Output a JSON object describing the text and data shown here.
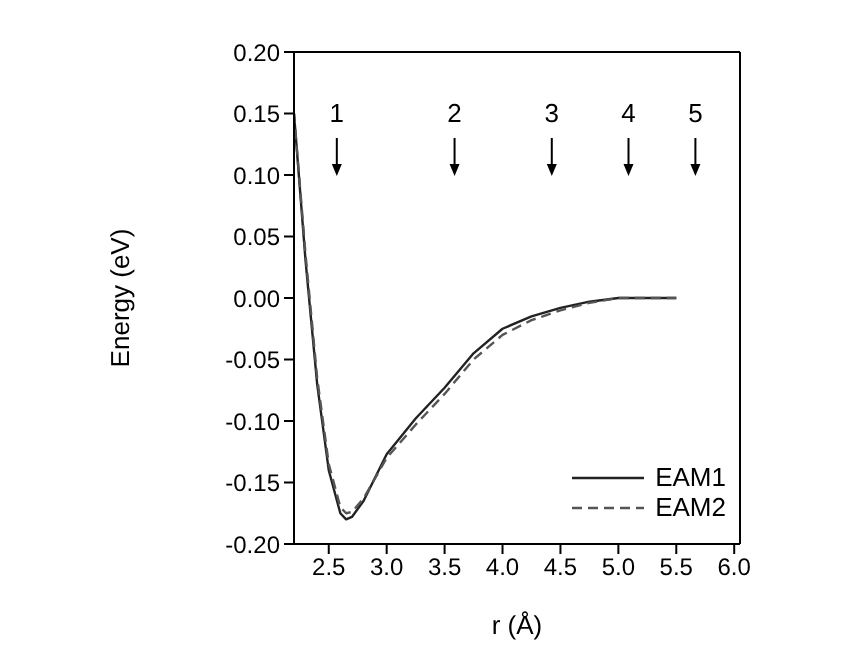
{
  "chart_data": {
    "type": "line",
    "xlabel": "r (Å)",
    "ylabel": "Energy (eV)",
    "x": [
      2.2,
      2.3,
      2.4,
      2.5,
      2.6,
      2.65,
      2.7,
      2.8,
      3.0,
      3.25,
      3.5,
      3.75,
      4.0,
      4.25,
      4.5,
      4.75,
      5.0,
      5.25,
      5.5
    ],
    "series": [
      {
        "name": "EAM1",
        "color": "#222222",
        "line_style": "solid",
        "values": [
          0.15,
          0.03,
          -0.07,
          -0.14,
          -0.175,
          -0.18,
          -0.178,
          -0.165,
          -0.127,
          -0.098,
          -0.073,
          -0.045,
          -0.025,
          -0.015,
          -0.008,
          -0.003,
          0.0,
          0.0,
          0.0
        ]
      },
      {
        "name": "EAM2",
        "color": "#555555",
        "line_style": "dashed",
        "values": [
          0.15,
          0.035,
          -0.065,
          -0.135,
          -0.17,
          -0.175,
          -0.174,
          -0.163,
          -0.13,
          -0.103,
          -0.078,
          -0.05,
          -0.03,
          -0.018,
          -0.01,
          -0.004,
          0.0,
          0.0,
          0.0
        ]
      }
    ],
    "xlim": [
      2.2,
      6.05
    ],
    "xticks": [
      2.5,
      {
        "value": 3,
        "label": "3.0"
      },
      3.5,
      {
        "value": 4,
        "label": "4.0"
      },
      4.5,
      {
        "value": 5,
        "label": "5.0"
      },
      5.5,
      {
        "value": 6,
        "label": "6.0"
      }
    ],
    "ylim": [
      -0.2,
      0.2
    ],
    "yticks": [
      {
        "value": -0.2,
        "label": "-0.20"
      },
      -0.15,
      {
        "value": -0.1,
        "label": "-0.10"
      },
      -0.05,
      {
        "value": 0,
        "label": "0.00"
      },
      0.05,
      {
        "value": 0.1,
        "label": "0.10"
      },
      0.15,
      {
        "value": 0.2,
        "label": "0.20"
      }
    ],
    "grid": false,
    "legend": "bottom right",
    "marker": "none",
    "annotations": [
      "1",
      "2",
      "3",
      "4",
      "5"
    ]
  }
}
